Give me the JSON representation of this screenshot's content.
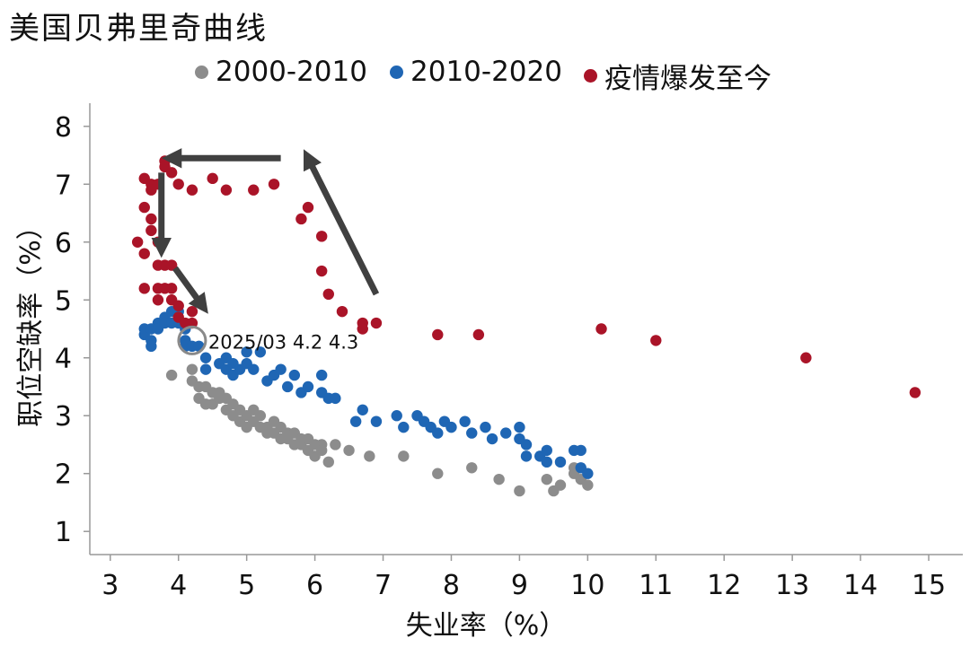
{
  "title": "美国贝弗里奇曲线",
  "colors": {
    "s2000": "#8c8c8c",
    "s2010": "#1f66b4",
    "covid": "#aa1428",
    "axis": "#999999",
    "arrow": "#404040"
  },
  "chart_data": {
    "type": "scatter",
    "title": "美国贝弗里奇曲线",
    "xlabel": "失业率（%）",
    "ylabel": "职位空缺率（%）",
    "xlim": [
      2.7,
      15.5
    ],
    "ylim": [
      0.6,
      8.4
    ],
    "xticks": [
      3,
      4,
      5,
      6,
      7,
      8,
      9,
      10,
      11,
      12,
      13,
      14,
      15
    ],
    "yticks": [
      1,
      2,
      3,
      4,
      5,
      6,
      7,
      8
    ],
    "grid": false,
    "legend_position": "top",
    "annotation": {
      "text": "2025/03  4.2  4.3",
      "x": 4.2,
      "y": 4.3
    },
    "series": [
      {
        "name": "2000-2010",
        "color": "#8c8c8c",
        "points": [
          [
            3.9,
            3.7
          ],
          [
            4.2,
            3.8
          ],
          [
            4.2,
            3.6
          ],
          [
            4.3,
            3.5
          ],
          [
            4.3,
            3.3
          ],
          [
            4.4,
            3.5
          ],
          [
            4.4,
            3.2
          ],
          [
            4.5,
            3.4
          ],
          [
            4.5,
            3.2
          ],
          [
            4.6,
            3.3
          ],
          [
            4.6,
            3.4
          ],
          [
            4.7,
            3.3
          ],
          [
            4.7,
            3.1
          ],
          [
            4.8,
            3.2
          ],
          [
            4.8,
            3.0
          ],
          [
            4.9,
            3.1
          ],
          [
            4.9,
            2.9
          ],
          [
            5.0,
            3.0
          ],
          [
            5.0,
            2.8
          ],
          [
            5.1,
            2.9
          ],
          [
            5.1,
            3.1
          ],
          [
            5.2,
            3.0
          ],
          [
            5.2,
            2.8
          ],
          [
            5.3,
            2.8
          ],
          [
            5.3,
            2.7
          ],
          [
            5.4,
            2.9
          ],
          [
            5.4,
            2.7
          ],
          [
            5.5,
            2.8
          ],
          [
            5.5,
            2.6
          ],
          [
            5.6,
            2.6
          ],
          [
            5.6,
            2.7
          ],
          [
            5.7,
            2.5
          ],
          [
            5.7,
            2.7
          ],
          [
            5.8,
            2.6
          ],
          [
            5.8,
            2.5
          ],
          [
            5.9,
            2.4
          ],
          [
            5.9,
            2.6
          ],
          [
            6.0,
            2.5
          ],
          [
            6.0,
            2.3
          ],
          [
            6.1,
            2.5
          ],
          [
            6.1,
            2.4
          ],
          [
            6.2,
            2.2
          ],
          [
            6.3,
            2.5
          ],
          [
            6.5,
            2.4
          ],
          [
            6.8,
            2.3
          ],
          [
            7.3,
            2.3
          ],
          [
            7.8,
            2.0
          ],
          [
            8.3,
            2.1
          ],
          [
            8.7,
            1.9
          ],
          [
            9.0,
            1.7
          ],
          [
            9.4,
            1.9
          ],
          [
            9.5,
            1.7
          ],
          [
            9.6,
            1.8
          ],
          [
            9.8,
            2.0
          ],
          [
            9.9,
            1.9
          ],
          [
            10.0,
            1.8
          ],
          [
            9.8,
            2.1
          ]
        ]
      },
      {
        "name": "2010-2020",
        "color": "#1f66b4",
        "points": [
          [
            3.5,
            4.5
          ],
          [
            3.5,
            4.4
          ],
          [
            3.6,
            4.5
          ],
          [
            3.6,
            4.3
          ],
          [
            3.6,
            4.2
          ],
          [
            3.7,
            4.6
          ],
          [
            3.7,
            4.5
          ],
          [
            3.8,
            4.7
          ],
          [
            3.8,
            4.6
          ],
          [
            3.9,
            4.8
          ],
          [
            3.9,
            4.6
          ],
          [
            4.0,
            4.8
          ],
          [
            4.0,
            4.6
          ],
          [
            4.1,
            4.5
          ],
          [
            4.1,
            4.3
          ],
          [
            4.1,
            4.2
          ],
          [
            4.2,
            4.2
          ],
          [
            4.3,
            4.2
          ],
          [
            4.4,
            4.0
          ],
          [
            4.4,
            3.8
          ],
          [
            4.6,
            3.9
          ],
          [
            4.7,
            4.0
          ],
          [
            4.7,
            3.8
          ],
          [
            4.8,
            3.9
          ],
          [
            4.8,
            3.7
          ],
          [
            4.9,
            3.8
          ],
          [
            5.0,
            3.9
          ],
          [
            5.0,
            4.1
          ],
          [
            5.1,
            3.8
          ],
          [
            5.2,
            4.1
          ],
          [
            5.3,
            3.6
          ],
          [
            5.4,
            3.7
          ],
          [
            5.5,
            3.8
          ],
          [
            5.6,
            3.5
          ],
          [
            5.7,
            3.7
          ],
          [
            5.8,
            3.4
          ],
          [
            5.9,
            3.5
          ],
          [
            6.1,
            3.7
          ],
          [
            6.1,
            3.4
          ],
          [
            6.2,
            3.3
          ],
          [
            6.3,
            3.3
          ],
          [
            6.6,
            2.9
          ],
          [
            6.7,
            3.1
          ],
          [
            6.9,
            2.9
          ],
          [
            7.2,
            3.0
          ],
          [
            7.3,
            2.8
          ],
          [
            7.5,
            3.0
          ],
          [
            7.6,
            2.9
          ],
          [
            7.7,
            2.8
          ],
          [
            7.8,
            2.7
          ],
          [
            7.9,
            2.9
          ],
          [
            8.0,
            2.8
          ],
          [
            8.2,
            2.9
          ],
          [
            8.3,
            2.7
          ],
          [
            8.5,
            2.8
          ],
          [
            8.6,
            2.6
          ],
          [
            8.8,
            2.7
          ],
          [
            9.0,
            2.8
          ],
          [
            9.0,
            2.6
          ],
          [
            9.1,
            2.5
          ],
          [
            9.1,
            2.3
          ],
          [
            9.3,
            2.3
          ],
          [
            9.4,
            2.4
          ],
          [
            9.4,
            2.2
          ],
          [
            9.6,
            2.2
          ],
          [
            9.8,
            2.4
          ],
          [
            9.9,
            2.4
          ],
          [
            9.9,
            2.1
          ],
          [
            10.0,
            2.0
          ]
        ]
      },
      {
        "name": "疫情爆发至今",
        "color": "#aa1428",
        "points": [
          [
            3.4,
            6.0
          ],
          [
            3.5,
            5.8
          ],
          [
            3.5,
            5.2
          ],
          [
            3.5,
            6.6
          ],
          [
            3.5,
            7.1
          ],
          [
            3.6,
            6.2
          ],
          [
            3.6,
            6.4
          ],
          [
            3.6,
            7.0
          ],
          [
            3.6,
            6.9
          ],
          [
            3.7,
            7.0
          ],
          [
            3.7,
            6.0
          ],
          [
            3.7,
            5.6
          ],
          [
            3.7,
            5.2
          ],
          [
            3.7,
            5.0
          ],
          [
            3.8,
            7.4
          ],
          [
            3.8,
            7.3
          ],
          [
            3.8,
            5.6
          ],
          [
            3.8,
            5.2
          ],
          [
            3.9,
            7.2
          ],
          [
            3.9,
            5.6
          ],
          [
            3.9,
            5.2
          ],
          [
            3.9,
            5.0
          ],
          [
            4.0,
            7.0
          ],
          [
            4.0,
            4.9
          ],
          [
            4.0,
            4.7
          ],
          [
            4.1,
            4.6
          ],
          [
            4.2,
            4.8
          ],
          [
            4.2,
            4.6
          ],
          [
            4.2,
            6.9
          ],
          [
            4.5,
            7.1
          ],
          [
            4.7,
            6.9
          ],
          [
            5.1,
            6.9
          ],
          [
            5.4,
            7.0
          ],
          [
            5.8,
            6.4
          ],
          [
            5.9,
            6.6
          ],
          [
            6.1,
            6.1
          ],
          [
            6.1,
            5.5
          ],
          [
            6.2,
            5.1
          ],
          [
            6.4,
            4.8
          ],
          [
            6.7,
            4.6
          ],
          [
            6.7,
            4.5
          ],
          [
            6.9,
            4.6
          ],
          [
            7.8,
            4.4
          ],
          [
            8.4,
            4.4
          ],
          [
            10.2,
            4.5
          ],
          [
            11.0,
            4.3
          ],
          [
            13.2,
            4.0
          ],
          [
            14.8,
            3.4
          ]
        ]
      }
    ],
    "arrows": [
      {
        "from": [
          5.5,
          7.45
        ],
        "to": [
          3.9,
          7.45
        ]
      },
      {
        "from": [
          3.75,
          7.2
        ],
        "to": [
          3.75,
          5.9
        ]
      },
      {
        "from": [
          3.95,
          5.55
        ],
        "to": [
          4.35,
          4.9
        ]
      },
      {
        "from": [
          6.9,
          5.1
        ],
        "to": [
          5.9,
          7.45
        ]
      }
    ]
  }
}
